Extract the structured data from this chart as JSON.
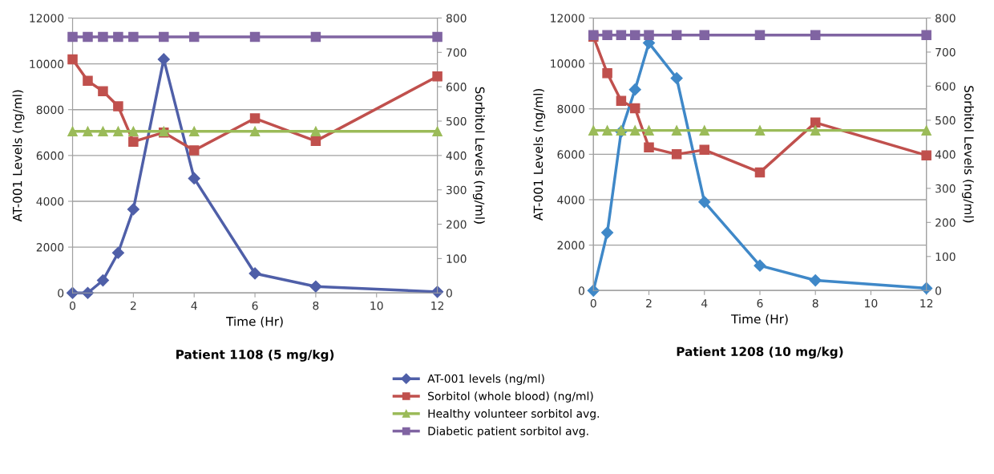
{
  "chart_data": [
    {
      "type": "line",
      "title": "Patient 1108 (5 mg/kg)",
      "xlabel": "Time (Hr)",
      "ylabel": "AT-001 Levels (ng/ml)",
      "y2label": "Sorbitol Levels (ng/ml)",
      "x": [
        0,
        0.5,
        1,
        1.5,
        2,
        3,
        4,
        6,
        8,
        12
      ],
      "xlim": [
        0,
        12
      ],
      "xticks": [
        0,
        2,
        4,
        6,
        8,
        10,
        12
      ],
      "ylim": [
        0,
        12000
      ],
      "yticks": [
        0,
        2000,
        4000,
        6000,
        8000,
        10000,
        12000
      ],
      "y2lim": [
        0,
        800
      ],
      "y2ticks": [
        0,
        100,
        200,
        300,
        400,
        500,
        600,
        700,
        800
      ],
      "grid": "y",
      "legend": "bottom",
      "series": [
        {
          "name": "AT-001 levels (ng/ml)",
          "color": "#4f5fa8",
          "marker": "diamond",
          "values": [
            0,
            0,
            550,
            1750,
            3650,
            10200,
            5000,
            850,
            280,
            50
          ]
        },
        {
          "name": "Sorbitol (whole blood) (ng/ml)",
          "color": "#c0504d",
          "marker": "square",
          "axis": "y2",
          "values": [
            680,
            617,
            587,
            543,
            440,
            467,
            415,
            508,
            442,
            630
          ]
        },
        {
          "name": "Healthy volunteer sorbitol avg.",
          "color": "#9bbb59",
          "marker": "triangle",
          "axis": "y2",
          "values": [
            470,
            470,
            470,
            470,
            470,
            470,
            470,
            470,
            470,
            470
          ]
        },
        {
          "name": "Diabetic patient sorbitol avg.",
          "color": "#8064a2",
          "marker": "square",
          "axis": "y2",
          "values": [
            745,
            745,
            745,
            745,
            745,
            745,
            745,
            745,
            745,
            745
          ]
        }
      ]
    },
    {
      "type": "line",
      "title": "Patient 1208 (10 mg/kg)",
      "xlabel": "Time (Hr)",
      "ylabel": "AT-001 Levels (ng/ml)",
      "y2label": "Sorbitol Levels (ng/ml)",
      "x": [
        0,
        0.5,
        1,
        1.5,
        2,
        3,
        4,
        6,
        8,
        12
      ],
      "xlim": [
        0,
        12
      ],
      "xticks": [
        0,
        2,
        4,
        6,
        8,
        10,
        12
      ],
      "ylim": [
        0,
        12000
      ],
      "yticks": [
        0,
        2000,
        4000,
        6000,
        8000,
        10000,
        12000
      ],
      "y2lim": [
        0,
        800
      ],
      "y2ticks": [
        0,
        100,
        200,
        300,
        400,
        500,
        600,
        700,
        800
      ],
      "grid": "y",
      "series": [
        {
          "color": "#3f88c8",
          "marker": "diamond",
          "values": [
            0,
            2550,
            7000,
            8850,
            10900,
            9350,
            3900,
            1100,
            450,
            100
          ]
        },
        {
          "color": "#c0504d",
          "marker": "square",
          "axis": "y2",
          "values": [
            745,
            638,
            557,
            535,
            420,
            400,
            413,
            347,
            493,
            397
          ]
        },
        {
          "color": "#9bbb59",
          "marker": "triangle",
          "axis": "y2",
          "values": [
            470,
            470,
            470,
            470,
            470,
            470,
            470,
            470,
            470,
            470
          ]
        },
        {
          "color": "#8064a2",
          "marker": "square",
          "axis": "y2",
          "values": [
            750,
            750,
            750,
            750,
            750,
            750,
            750,
            750,
            750,
            750
          ]
        }
      ]
    }
  ]
}
